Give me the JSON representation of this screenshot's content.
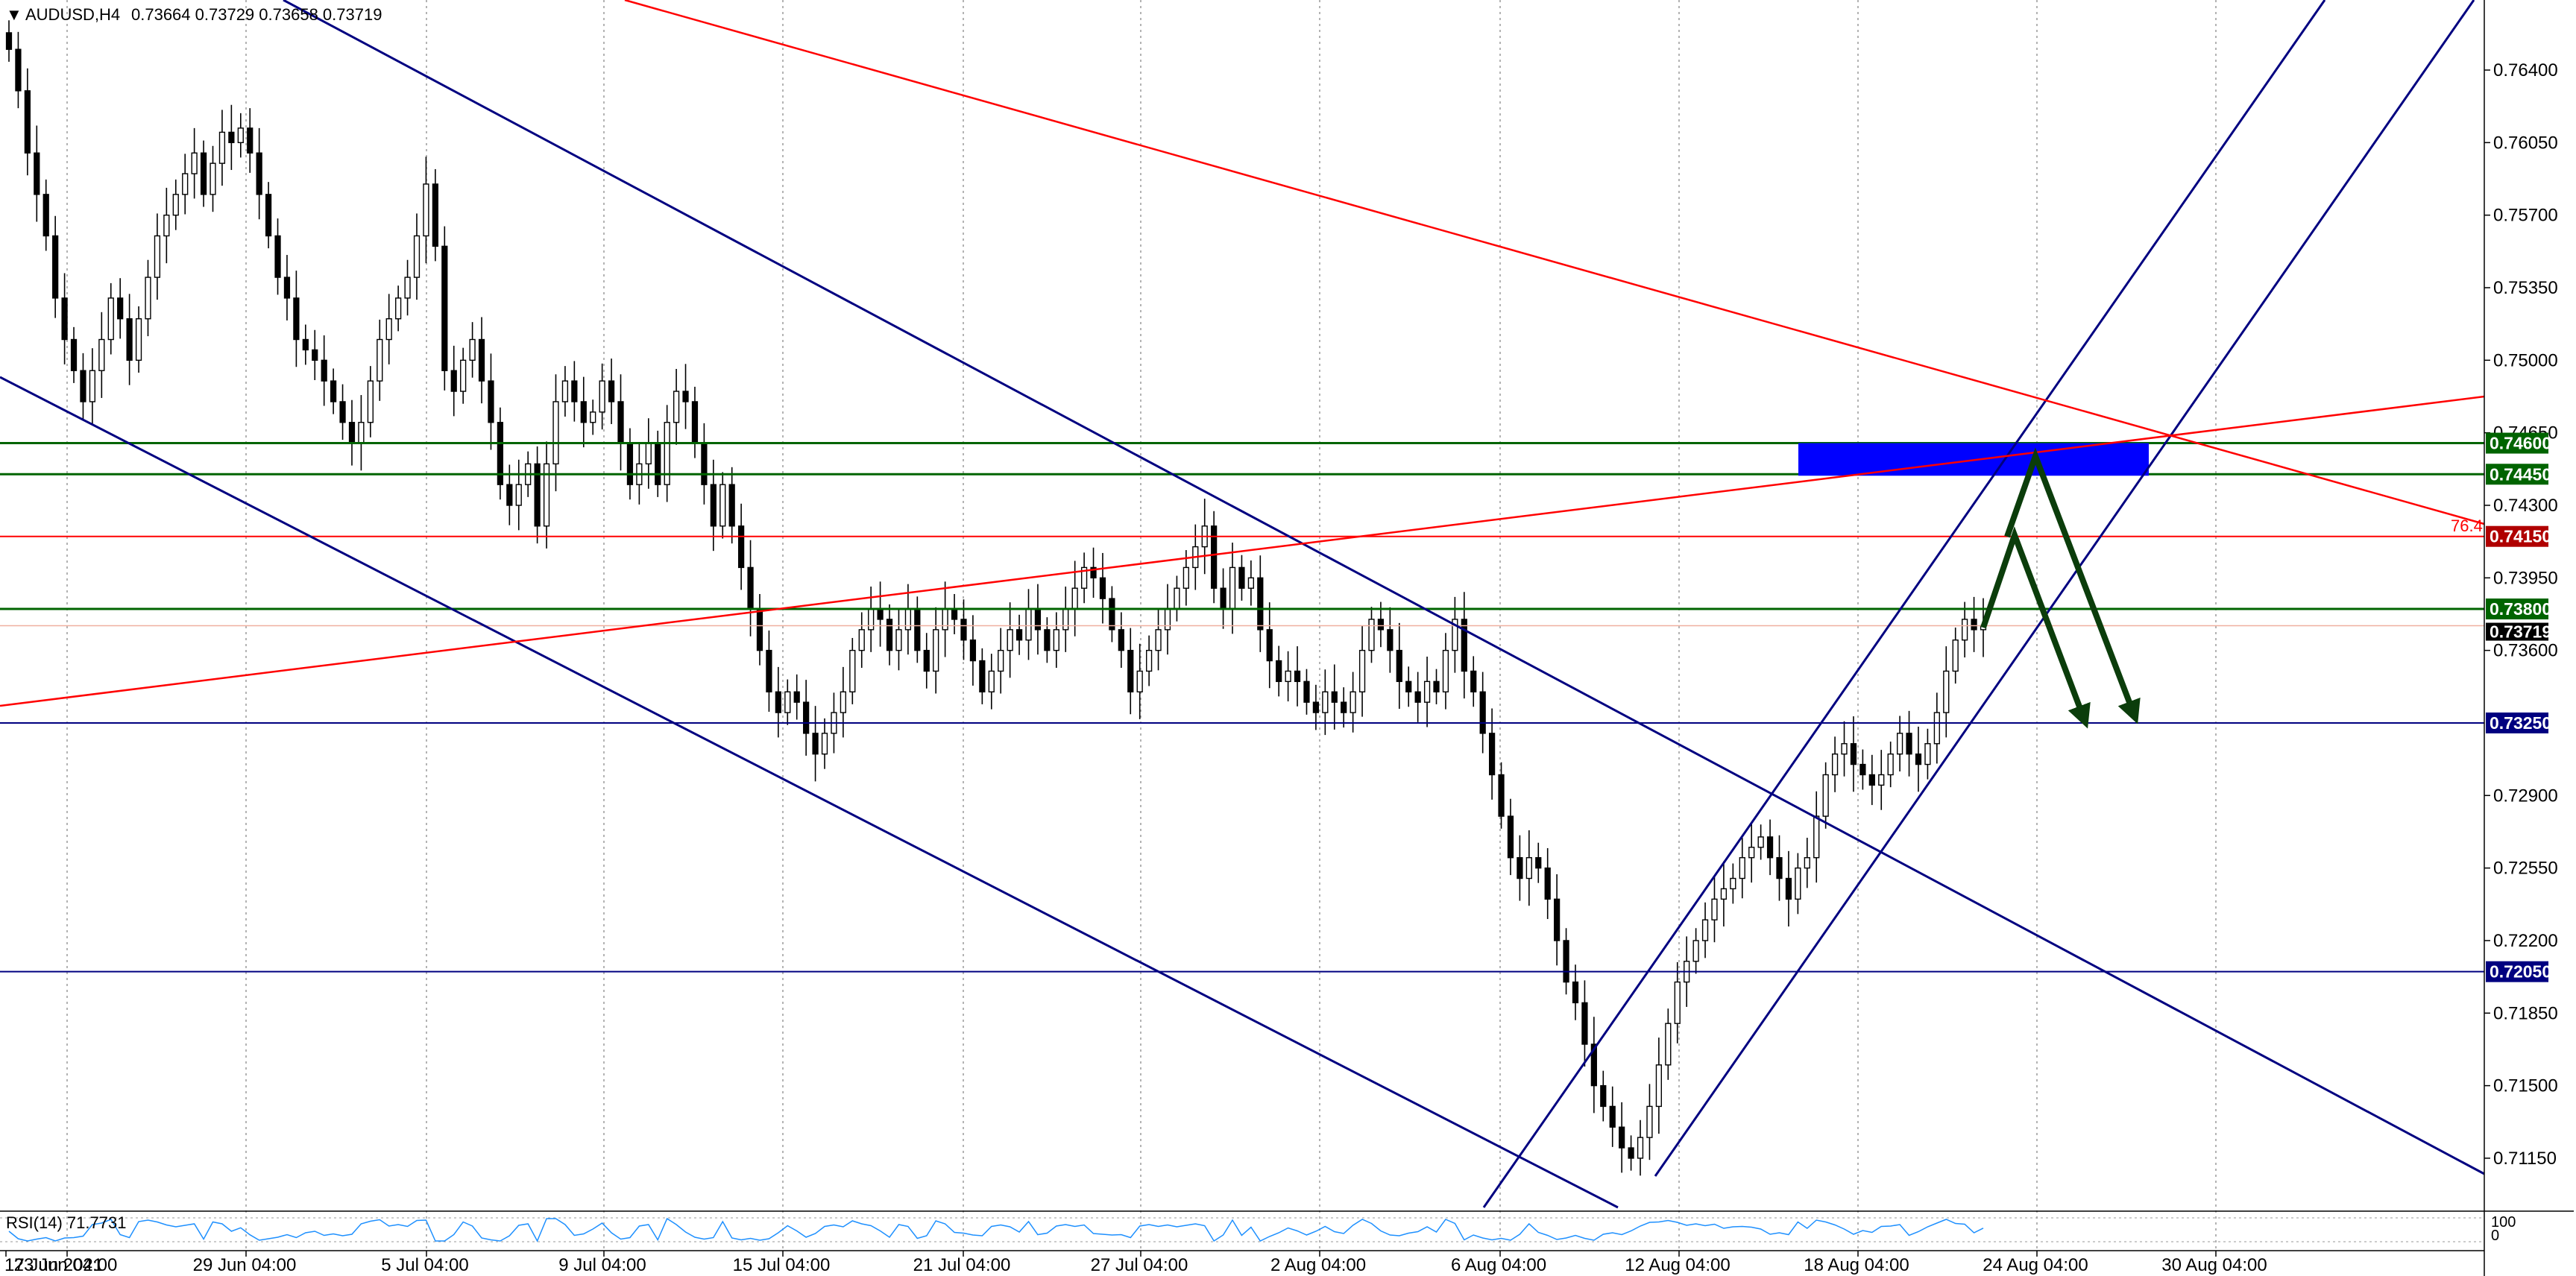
{
  "header": {
    "menu_glyph": "▼",
    "symbol": "AUDUSD,H4",
    "ohlc": "0.73664 0.73729 0.73658 0.73719"
  },
  "rsi_panel": {
    "label": "RSI(14) 71.7731",
    "scale_top": "100",
    "scale_bottom": "0",
    "level_high": "70",
    "level_low": "30"
  },
  "fib_label": "76.4",
  "colors": {
    "background": "#ffffff",
    "blue_line": "#000080",
    "red_line": "#ff0000",
    "green_level": "#006400",
    "zone": "#0000ff",
    "arrow": "#0b3d0b",
    "rsi_line": "#1e90ff",
    "grid": "#9a9a9a"
  },
  "chart_data": {
    "type": "candlestick",
    "instrument": "AUDUSD",
    "timeframe": "H4",
    "y_ticks": [
      "0.76400",
      "0.76050",
      "0.75700",
      "0.75350",
      "0.75000",
      "0.74650",
      "0.74300",
      "0.73950",
      "0.73600",
      "0.72900",
      "0.72550",
      "0.72200",
      "0.71850",
      "0.71500",
      "0.71150"
    ],
    "x_ticks": [
      "17 Jun 2021",
      "23 Jun 04:00",
      "29 Jun 04:00",
      "5 Jul 04:00",
      "9 Jul 04:00",
      "15 Jul 04:00",
      "21 Jul 04:00",
      "27 Jul 04:00",
      "2 Aug 04:00",
      "6 Aug 04:00",
      "12 Aug 04:00",
      "18 Aug 04:00",
      "24 Aug 04:00",
      "30 Aug 04:00"
    ],
    "ylim": [
      0.71,
      0.765
    ],
    "current_price": "0.73719",
    "levels": [
      {
        "label": "0.74600",
        "value": 0.746,
        "color": "green"
      },
      {
        "label": "0.74450",
        "value": 0.7445,
        "color": "green"
      },
      {
        "label": "0.74150",
        "value": 0.7415,
        "color": "red"
      },
      {
        "label": "0.73800",
        "value": 0.738,
        "color": "green"
      },
      {
        "label": "0.73250",
        "value": 0.7325,
        "color": "blue"
      },
      {
        "label": "0.72050",
        "value": 0.7205,
        "color": "blue"
      }
    ],
    "closes": [
      0.765,
      0.763,
      0.76,
      0.758,
      0.756,
      0.753,
      0.751,
      0.7495,
      0.748,
      0.7495,
      0.751,
      0.753,
      0.752,
      0.75,
      0.752,
      0.754,
      0.756,
      0.757,
      0.758,
      0.759,
      0.76,
      0.758,
      0.7595,
      0.761,
      0.7605,
      0.7612,
      0.76,
      0.758,
      0.756,
      0.754,
      0.753,
      0.751,
      0.7505,
      0.75,
      0.749,
      0.748,
      0.747,
      0.746,
      0.747,
      0.749,
      0.751,
      0.752,
      0.753,
      0.754,
      0.756,
      0.7585,
      0.7555,
      0.7495,
      0.7485,
      0.75,
      0.751,
      0.749,
      0.747,
      0.744,
      0.743,
      0.744,
      0.745,
      0.742,
      0.745,
      0.748,
      0.749,
      0.748,
      0.747,
      0.7475,
      0.749,
      0.748,
      0.746,
      0.744,
      0.745,
      0.746,
      0.744,
      0.747,
      0.7485,
      0.748,
      0.746,
      0.744,
      0.742,
      0.744,
      0.742,
      0.74,
      0.738,
      0.736,
      0.734,
      0.733,
      0.734,
      0.7335,
      0.732,
      0.731,
      0.732,
      0.733,
      0.734,
      0.736,
      0.737,
      0.738,
      0.7375,
      0.736,
      0.737,
      0.738,
      0.736,
      0.735,
      0.737,
      0.738,
      0.7375,
      0.7365,
      0.7355,
      0.734,
      0.735,
      0.736,
      0.737,
      0.7365,
      0.738,
      0.737,
      0.736,
      0.737,
      0.738,
      0.739,
      0.74,
      0.7395,
      0.7385,
      0.737,
      0.736,
      0.734,
      0.735,
      0.736,
      0.737,
      0.738,
      0.739,
      0.74,
      0.741,
      0.742,
      0.739,
      0.738,
      0.74,
      0.739,
      0.7395,
      0.737,
      0.7355,
      0.7345,
      0.735,
      0.7345,
      0.7335,
      0.733,
      0.734,
      0.7335,
      0.733,
      0.734,
      0.736,
      0.7375,
      0.737,
      0.736,
      0.7345,
      0.734,
      0.7335,
      0.7345,
      0.734,
      0.736,
      0.7375,
      0.735,
      0.734,
      0.732,
      0.73,
      0.728,
      0.726,
      0.725,
      0.726,
      0.7255,
      0.724,
      0.722,
      0.72,
      0.719,
      0.717,
      0.715,
      0.714,
      0.713,
      0.712,
      0.7115,
      0.7125,
      0.714,
      0.716,
      0.718,
      0.72,
      0.721,
      0.722,
      0.723,
      0.724,
      0.7245,
      0.725,
      0.726,
      0.7265,
      0.727,
      0.726,
      0.725,
      0.724,
      0.7255,
      0.726,
      0.728,
      0.73,
      0.731,
      0.7315,
      0.7305,
      0.73,
      0.7295,
      0.73,
      0.731,
      0.732,
      0.731,
      0.7305,
      0.7315,
      0.733,
      0.735,
      0.7365,
      0.7375,
      0.737,
      0.7372
    ]
  }
}
